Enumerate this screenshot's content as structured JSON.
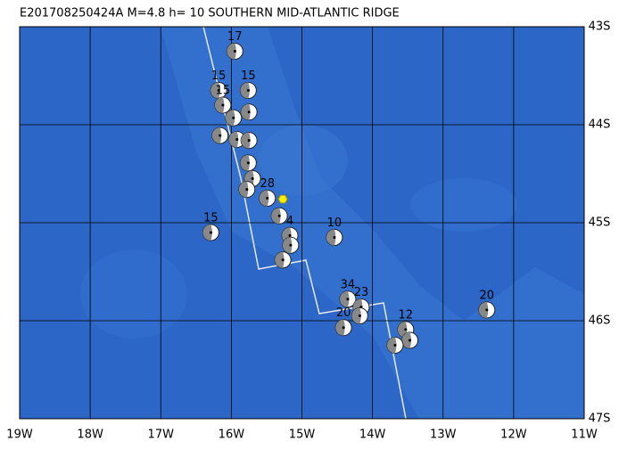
{
  "title": "E201708250424A  M=4.8  h= 10 SOUTHERN MID-ATLANTIC RIDGE",
  "map": {
    "lon_range": [
      -19,
      -11
    ],
    "lat_range": [
      -43,
      -47
    ],
    "lon_ticks": [
      {
        "value": -19,
        "label": "19W"
      },
      {
        "value": -18,
        "label": "18W"
      },
      {
        "value": -17,
        "label": "17W"
      },
      {
        "value": -16,
        "label": "16W"
      },
      {
        "value": -15,
        "label": "15W"
      },
      {
        "value": -14,
        "label": "14W"
      },
      {
        "value": -13,
        "label": "13W"
      },
      {
        "value": -12,
        "label": "12W"
      },
      {
        "value": -11,
        "label": "11W"
      }
    ],
    "lat_ticks": [
      {
        "value": -43,
        "label": "43S"
      },
      {
        "value": -44,
        "label": "44S"
      },
      {
        "value": -45,
        "label": "45S"
      },
      {
        "value": -46,
        "label": "46S"
      },
      {
        "value": -47,
        "label": "47S"
      }
    ],
    "epicenter": {
      "lon": -15.27,
      "lat": -44.76
    },
    "events": [
      {
        "lon": -15.95,
        "lat": -43.25,
        "depth": 17
      },
      {
        "lon": -16.18,
        "lat": -43.65,
        "depth": 15
      },
      {
        "lon": -15.76,
        "lat": -43.65,
        "depth": 15
      },
      {
        "lon": -16.12,
        "lat": -43.8,
        "depth": 15
      },
      {
        "lon": -15.97,
        "lat": -43.93
      },
      {
        "lon": -15.75,
        "lat": -43.87
      },
      {
        "lon": -16.16,
        "lat": -44.11
      },
      {
        "lon": -15.92,
        "lat": -44.15
      },
      {
        "lon": -15.75,
        "lat": -44.16
      },
      {
        "lon": -15.76,
        "lat": -44.39
      },
      {
        "lon": -15.7,
        "lat": -44.55
      },
      {
        "lon": -15.78,
        "lat": -44.66
      },
      {
        "lon": -15.49,
        "lat": -44.75,
        "depth": 28
      },
      {
        "lon": -15.32,
        "lat": -44.93
      },
      {
        "lon": -15.17,
        "lat": -45.13,
        "depth": 4
      },
      {
        "lon": -15.16,
        "lat": -45.23
      },
      {
        "lon": -15.27,
        "lat": -45.38
      },
      {
        "lon": -16.29,
        "lat": -45.1,
        "depth": 15
      },
      {
        "lon": -14.54,
        "lat": -45.15,
        "depth": 10
      },
      {
        "lon": -14.35,
        "lat": -45.78,
        "depth": 34
      },
      {
        "lon": -14.16,
        "lat": -45.86,
        "depth": 23
      },
      {
        "lon": -14.18,
        "lat": -45.95
      },
      {
        "lon": -14.41,
        "lat": -46.07,
        "depth": 20
      },
      {
        "lon": -13.53,
        "lat": -46.09,
        "depth": 12
      },
      {
        "lon": -13.47,
        "lat": -46.2
      },
      {
        "lon": -13.68,
        "lat": -46.25
      },
      {
        "lon": -12.38,
        "lat": -45.89,
        "depth": 20
      }
    ]
  }
}
